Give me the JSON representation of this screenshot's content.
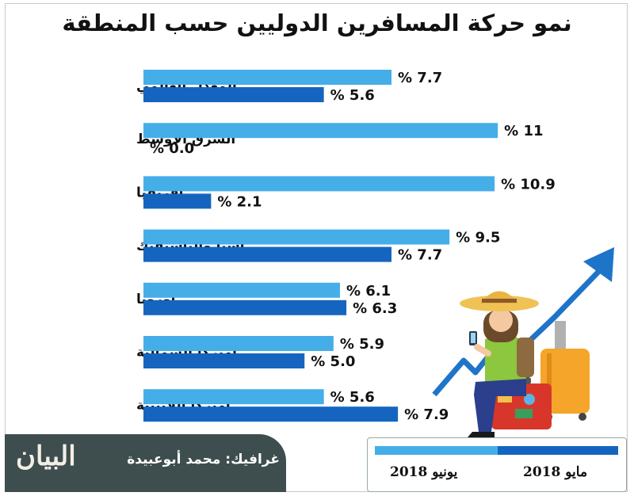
{
  "title": "نمو حركة المسافرين الدوليين حسب المنطقة",
  "chart_data": {
    "type": "bar",
    "orientation": "horizontal",
    "categories": [
      "المعدل العالمي",
      "الشرق الأوسط",
      "أفريقيا",
      "آسيا والباسيفيك",
      "أوروبا",
      "أميركا الشمالية",
      "أميركا اللاتينية"
    ],
    "series": [
      {
        "name": "يونيو 2018",
        "color": "#45aee8",
        "values": [
          7.7,
          11,
          10.9,
          9.5,
          6.1,
          5.9,
          5.6
        ]
      },
      {
        "name": "مايو 2018",
        "color": "#1565c0",
        "values": [
          5.6,
          0.0,
          2.1,
          7.7,
          6.3,
          5.0,
          7.9
        ]
      }
    ],
    "data_labels": [
      [
        "% 7.7",
        "% 11",
        "% 10.9",
        "% 9.5",
        "% 6.1",
        "% 5.9",
        "% 5.6"
      ],
      [
        "% 5.6",
        "% 0.0",
        "% 2.1",
        "% 7.7",
        "% 6.3",
        "% 5.0",
        "% 7.9"
      ]
    ],
    "xlim": [
      0,
      11
    ],
    "grid": false,
    "legend_position": "bottom-right"
  },
  "footer": {
    "credit": "غرافيك: محمد أبوعبيدة",
    "logo_text": "البيان"
  },
  "legend": {
    "june_label": "يونيو 2018",
    "may_label": "مايو 2018"
  },
  "colors": {
    "june": "#45aee8",
    "may": "#1565c0",
    "footer_bg": "#3e4e4e"
  },
  "illustration": {
    "name": "traveler-illustration"
  }
}
